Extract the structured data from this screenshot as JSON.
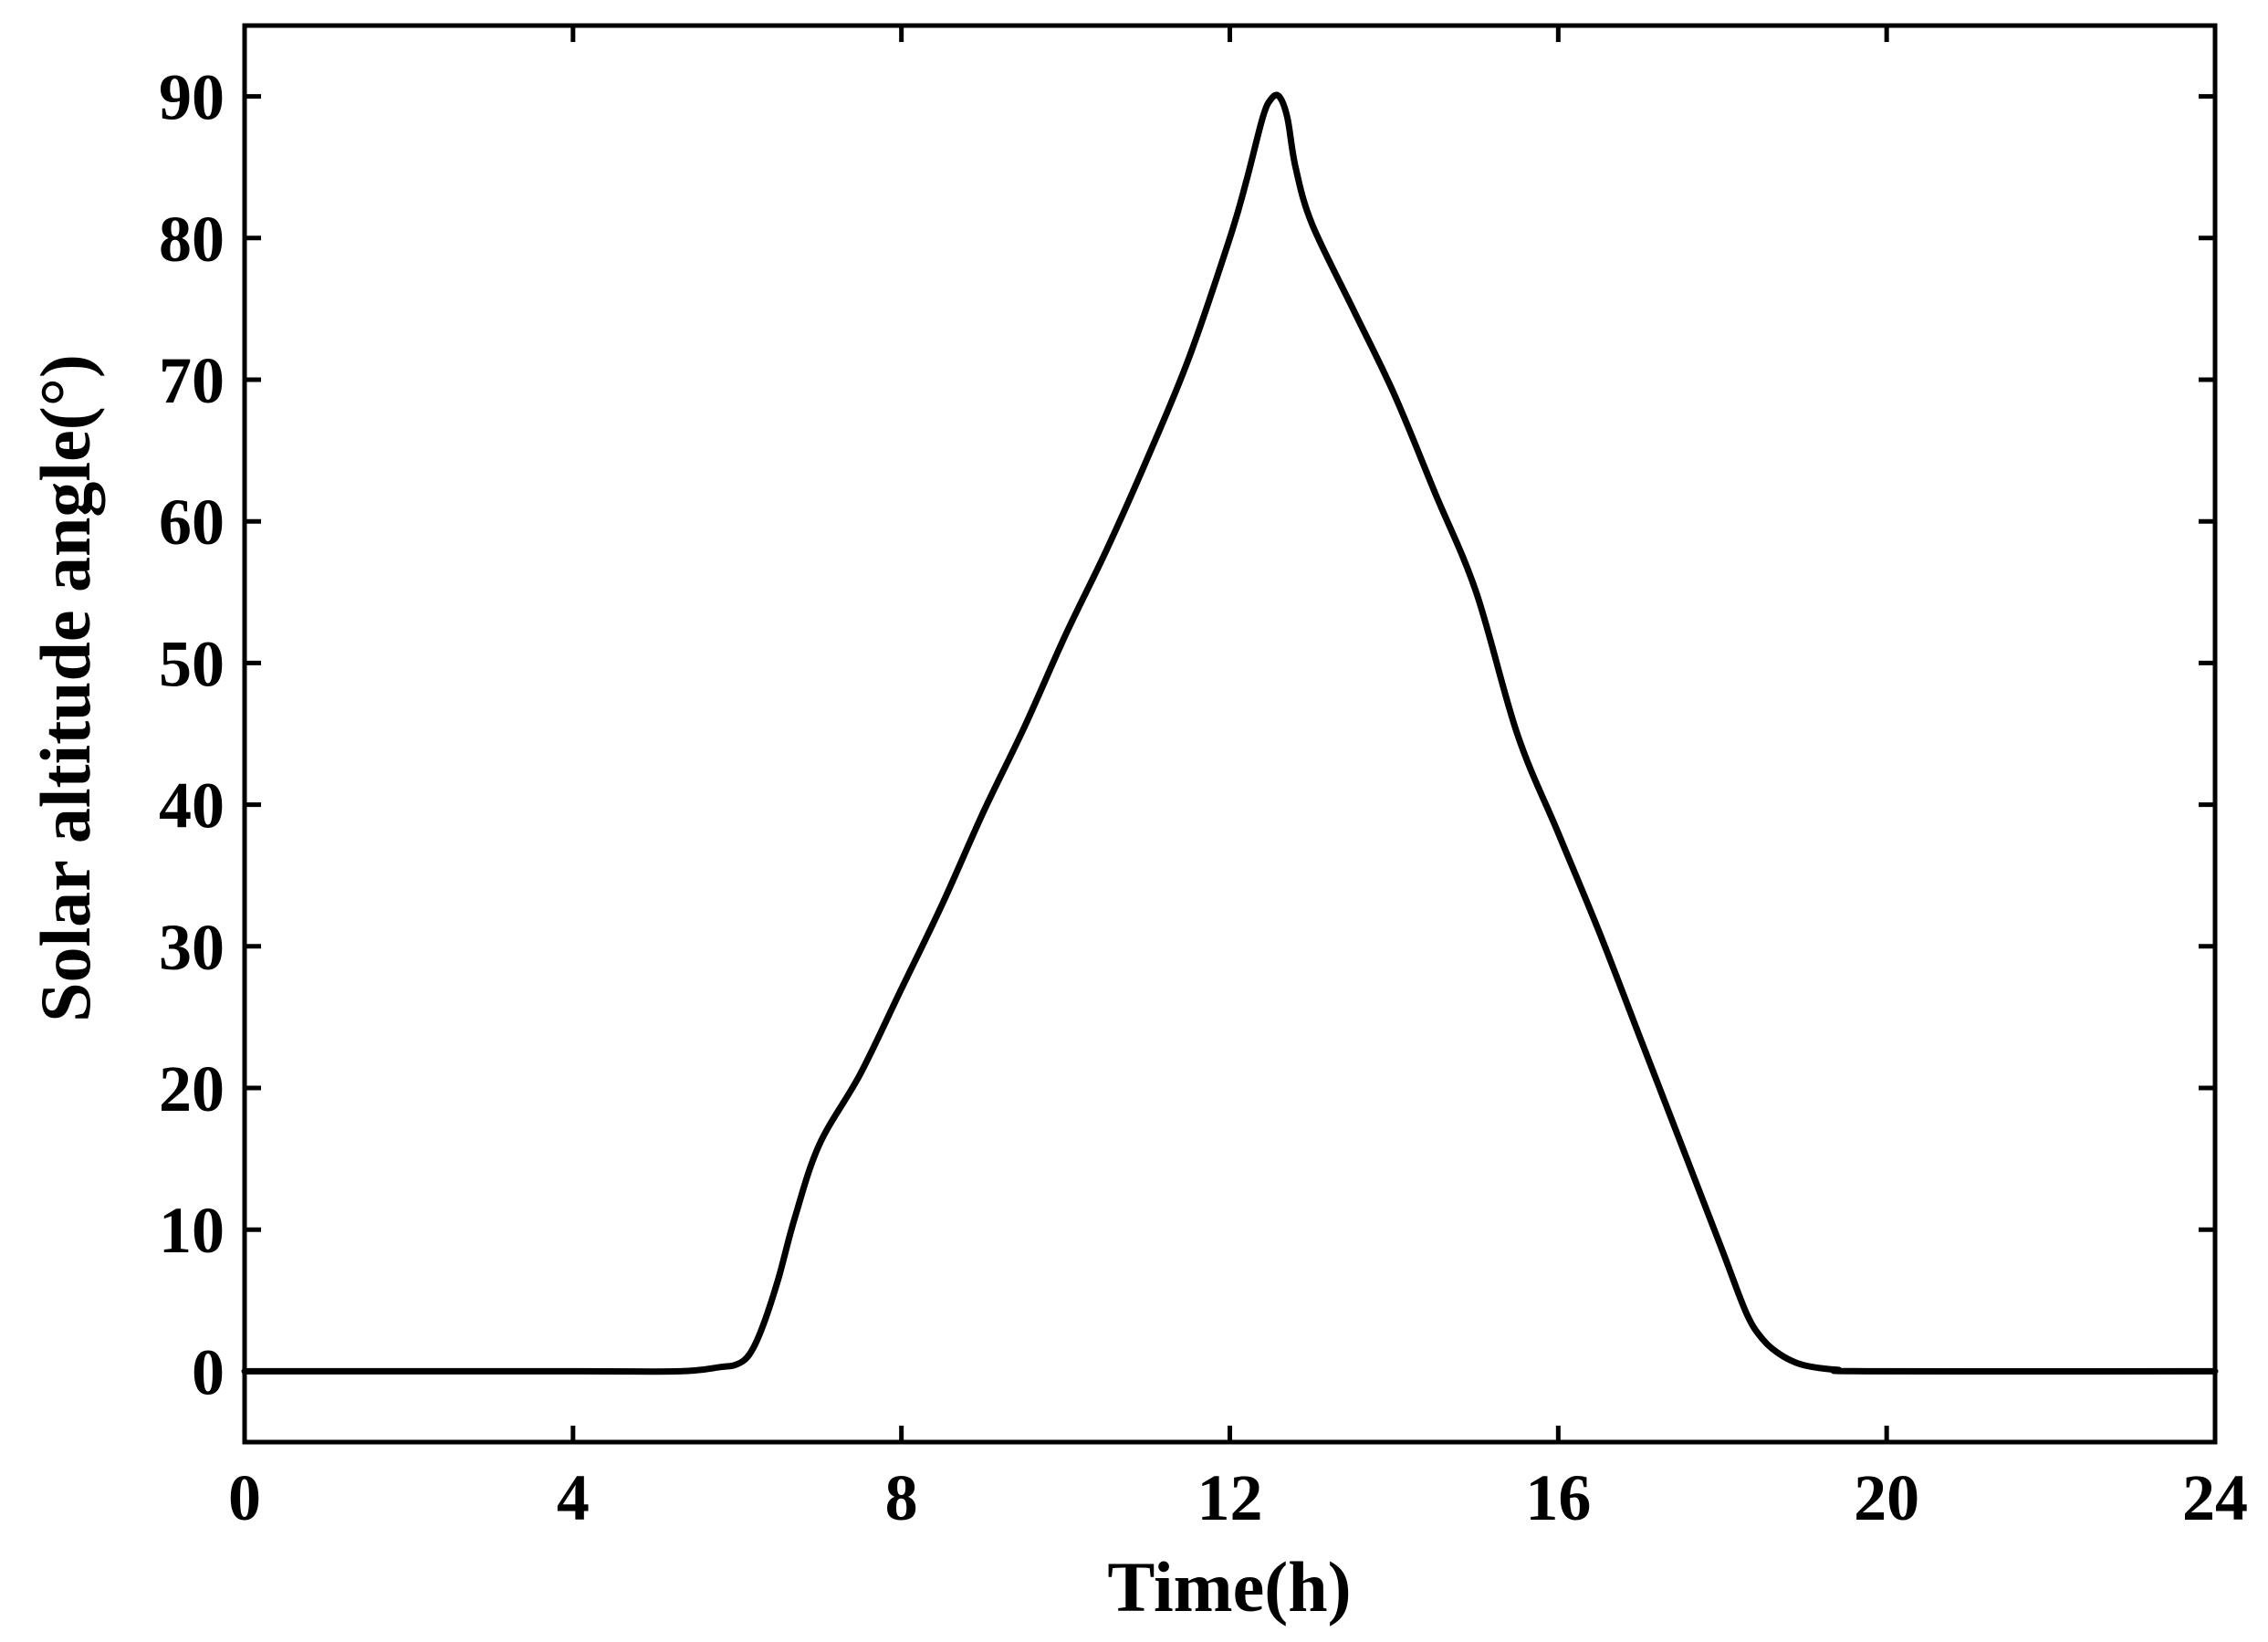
{
  "chart_data": {
    "type": "line",
    "xlabel": "Time(h)",
    "ylabel": "Solar altitude angle(°)",
    "xlim": [
      0,
      24
    ],
    "ylim": [
      -5,
      95
    ],
    "xticks": [
      0,
      4,
      8,
      12,
      16,
      20,
      24
    ],
    "yticks": [
      0,
      10,
      20,
      30,
      40,
      50,
      60,
      70,
      80,
      90
    ],
    "grid": false,
    "legend": "none",
    "line_color": "#000000",
    "series": [
      {
        "x": [
          0,
          4,
          5.3,
          5.8,
          6.0,
          6.15,
          6.3,
          6.5,
          6.7,
          7.0,
          7.5,
          8.0,
          8.5,
          9.0,
          9.5,
          10.0,
          10.5,
          11.0,
          11.5,
          12.0,
          12.2,
          12.4,
          12.5,
          12.6,
          12.7,
          12.8,
          13.0,
          13.5,
          14.0,
          14.5,
          15.0,
          15.5,
          16.0,
          16.5,
          17.0,
          17.5,
          18.0,
          18.3,
          18.5,
          18.7,
          18.9,
          19.1,
          19.4,
          19.8,
          24
        ],
        "y": [
          0,
          0,
          0,
          0.3,
          0.5,
          1.2,
          3.0,
          6.5,
          10.8,
          16,
          21,
          27,
          33,
          39.5,
          45.5,
          52,
          58,
          64.5,
          71.5,
          80,
          84,
          88.5,
          89.8,
          90,
          88.5,
          85,
          81,
          75,
          69,
          62,
          55,
          45,
          38,
          31,
          23.5,
          16,
          8.5,
          4,
          2.2,
          1.2,
          0.6,
          0.3,
          0.1,
          0,
          0
        ]
      }
    ]
  }
}
